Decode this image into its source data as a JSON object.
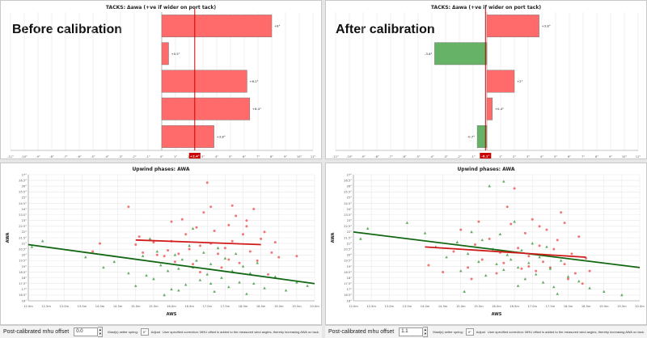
{
  "before": {
    "label": "Before calibration",
    "tacks": {
      "title": "TACKS: Δawa (+ve if wider on port tack)",
      "marker_label": "+2.4°",
      "marker_value": 2.4,
      "xlim": [
        -11,
        11
      ],
      "ticks": [
        "-11°",
        "-10°",
        "-9°",
        "-8°",
        "-7°",
        "-6°",
        "-5°",
        "-4°",
        "-3°",
        "-2°",
        "-1°",
        "0°",
        "1°",
        "2°",
        "3°",
        "4°",
        "5°",
        "6°",
        "7°",
        "8°",
        "9°",
        "10°",
        "11°"
      ],
      "bars": [
        {
          "value": 8.0,
          "label": "+8°"
        },
        {
          "value": 0.5,
          "label": "+0.5°"
        },
        {
          "value": 6.2,
          "label": "+6.2°"
        },
        {
          "value": 6.4,
          "label": "+6.4°"
        },
        {
          "value": 3.8,
          "label": "+3.8°"
        }
      ]
    },
    "upwind": {
      "title": "Upwind phases: AWA",
      "xlabel": "AWS",
      "ylabel": "AWA"
    },
    "offset_label": "Post-calibrated mhu offset",
    "offset_value": "0.0",
    "small_text_1": "Mast(s) setter spring:",
    "small_value": "0°",
    "small_text_2": "Adjust",
    "small_text_3": "User specified correction: MHU offset is added to the measured wind angles, thereby increasing AWA on tack."
  },
  "after": {
    "label": "After calibration",
    "tacks": {
      "title": "TACKS: Δawa (+ve if wider on port tack)",
      "marker_label": "-0.1°",
      "marker_value": -0.1,
      "xlim": [
        -11,
        11
      ],
      "ticks": [
        "-11°",
        "-10°",
        "-9°",
        "-8°",
        "-7°",
        "-6°",
        "-5°",
        "-4°",
        "-3°",
        "-2°",
        "-1°",
        "0°",
        "1°",
        "2°",
        "3°",
        "4°",
        "5°",
        "6°",
        "7°",
        "8°",
        "9°",
        "10°",
        "11°"
      ],
      "bars": [
        {
          "value": 3.8,
          "label": "+3.8°"
        },
        {
          "value": -3.8,
          "label": "-3.8°"
        },
        {
          "value": 2.0,
          "label": "+2°"
        },
        {
          "value": 0.4,
          "label": "+0.4°"
        },
        {
          "value": -0.7,
          "label": "-0.7°"
        }
      ]
    },
    "upwind": {
      "title": "Upwind phases: AWA",
      "xlabel": "AWS",
      "ylabel": "AWA"
    },
    "offset_label": "Post-calibrated mhu offset",
    "offset_value": "1.1",
    "small_text_1": "Mast(s) setter spring:",
    "small_value": "0°",
    "small_text_2": "Adjust",
    "small_text_3": "User specified correction: MHU offset is added to the measured wind angles, thereby increasing AWA on tack."
  },
  "upwind_axes": {
    "xticks": [
      "12.0m",
      "12.5m",
      "13.0m",
      "13.5m",
      "14.0m",
      "14.5m",
      "15.0m",
      "15.5m",
      "16.0m",
      "16.5m",
      "17.0m",
      "17.5m",
      "18.0m",
      "18.5m",
      "19.0m",
      "19.5m",
      "20.0m"
    ],
    "yticks": [
      "16°",
      "16.5°",
      "17°",
      "17.5°",
      "18°",
      "18.5°",
      "19°",
      "19.5°",
      "20°",
      "20.5°",
      "21°",
      "21.5°",
      "22°",
      "22.5°",
      "23°",
      "23.5°",
      "24°",
      "24.5°",
      "25°",
      "25.5°",
      "26°",
      "26.5°",
      "27°"
    ],
    "xlim": [
      12,
      20
    ],
    "ylim": [
      16,
      27
    ]
  },
  "colors": {
    "bar_positive": "#ff6b6b",
    "bar_negative": "#66b266",
    "marker": "#cc0000",
    "red_trend": "#d11a1a",
    "green_trend": "#116611",
    "red_points": "#ee5555",
    "green_points": "#3e9a3e"
  },
  "chart_data": [
    {
      "type": "bar",
      "title": "TACKS: Δawa (+ve if wider on port tack)",
      "orientation": "horizontal",
      "values": [
        8.0,
        0.5,
        6.2,
        6.4,
        3.8
      ],
      "data_labels": [
        "+8°",
        "+0.5°",
        "+6.2°",
        "+6.4°",
        "+3.8°"
      ],
      "xlim": [
        -11,
        11
      ],
      "marker": 2.4
    },
    {
      "type": "bar",
      "title": "TACKS: Δawa (+ve if wider on port tack)",
      "orientation": "horizontal",
      "values": [
        3.8,
        -3.8,
        2.0,
        0.4,
        -0.7
      ],
      "data_labels": [
        "+3.8°",
        "-3.8°",
        "+2°",
        "+0.4°",
        "-0.7°"
      ],
      "xlim": [
        -11,
        11
      ],
      "marker": -0.1
    },
    {
      "type": "scatter",
      "title": "Upwind phases: AWA",
      "xlabel": "AWS",
      "ylabel": "AWA",
      "xlim": [
        12,
        20
      ],
      "ylim": [
        16,
        27
      ],
      "trend_red": [
        [
          15.0,
          21.3
        ],
        [
          18.5,
          20.9
        ]
      ],
      "trend_green": [
        [
          12.0,
          20.9
        ],
        [
          20.0,
          17.5
        ]
      ],
      "red_points": [
        [
          14.8,
          24.2
        ],
        [
          15.0,
          20.9
        ],
        [
          15.2,
          20.2
        ],
        [
          15.1,
          21.6
        ],
        [
          15.5,
          21.1
        ],
        [
          15.8,
          19.9
        ],
        [
          15.9,
          20.4
        ],
        [
          16.0,
          21.2
        ],
        [
          16.2,
          20.1
        ],
        [
          16.4,
          21.8
        ],
        [
          16.5,
          20.5
        ],
        [
          16.6,
          19.2
        ],
        [
          16.7,
          22.4
        ],
        [
          16.8,
          20.8
        ],
        [
          16.9,
          23.7
        ],
        [
          17.0,
          26.3
        ],
        [
          17.1,
          24.2
        ],
        [
          17.1,
          21.0
        ],
        [
          17.3,
          20.1
        ],
        [
          17.4,
          18.9
        ],
        [
          17.5,
          20.6
        ],
        [
          17.6,
          22.6
        ],
        [
          17.7,
          21.2
        ],
        [
          17.8,
          23.4
        ],
        [
          17.9,
          19.3
        ],
        [
          18.0,
          21.8
        ],
        [
          18.1,
          22.5
        ],
        [
          18.2,
          20.3
        ],
        [
          18.3,
          24.0
        ],
        [
          18.4,
          19.5
        ],
        [
          18.5,
          21.4
        ],
        [
          18.6,
          22.0
        ],
        [
          18.8,
          20.2
        ],
        [
          18.9,
          21.1
        ],
        [
          19.0,
          19.8
        ],
        [
          16.0,
          22.9
        ],
        [
          16.3,
          23.1
        ],
        [
          17.2,
          22.1
        ],
        [
          17.7,
          24.3
        ],
        [
          18.1,
          23.0
        ],
        [
          15.6,
          20.0
        ],
        [
          16.1,
          19.4
        ],
        [
          16.8,
          18.5
        ],
        [
          17.6,
          19.6
        ],
        [
          18.7,
          18.3
        ],
        [
          14.0,
          21.0
        ],
        [
          13.8,
          20.3
        ],
        [
          19.5,
          19.9
        ]
      ],
      "green_points": [
        [
          12.1,
          20.7
        ],
        [
          12.4,
          21.2
        ],
        [
          13.6,
          19.8
        ],
        [
          14.1,
          18.9
        ],
        [
          14.4,
          19.4
        ],
        [
          14.8,
          18.4
        ],
        [
          15.0,
          17.3
        ],
        [
          15.2,
          19.9
        ],
        [
          15.3,
          18.2
        ],
        [
          15.5,
          17.9
        ],
        [
          15.6,
          20.3
        ],
        [
          15.7,
          19.1
        ],
        [
          15.9,
          18.6
        ],
        [
          16.0,
          17.0
        ],
        [
          16.1,
          20.0
        ],
        [
          16.2,
          18.8
        ],
        [
          16.3,
          19.6
        ],
        [
          16.4,
          17.4
        ],
        [
          16.5,
          20.8
        ],
        [
          16.6,
          18.9
        ],
        [
          16.7,
          19.5
        ],
        [
          16.8,
          17.8
        ],
        [
          16.9,
          20.2
        ],
        [
          17.0,
          18.3
        ],
        [
          17.1,
          19.2
        ],
        [
          17.2,
          16.8
        ],
        [
          17.3,
          20.6
        ],
        [
          17.4,
          18.0
        ],
        [
          17.5,
          19.7
        ],
        [
          17.6,
          17.2
        ],
        [
          17.7,
          18.6
        ],
        [
          17.8,
          20.1
        ],
        [
          17.9,
          17.6
        ],
        [
          18.0,
          19.0
        ],
        [
          18.1,
          16.6
        ],
        [
          18.2,
          18.4
        ],
        [
          18.4,
          19.3
        ],
        [
          18.6,
          17.1
        ],
        [
          18.9,
          18.1
        ],
        [
          19.2,
          16.9
        ],
        [
          19.5,
          17.6
        ],
        [
          19.8,
          17.3
        ],
        [
          16.6,
          22.3
        ],
        [
          15.4,
          21.4
        ],
        [
          17.1,
          17.5
        ],
        [
          16.2,
          16.9
        ],
        [
          15.8,
          16.5
        ],
        [
          18.3,
          17.5
        ]
      ]
    },
    {
      "type": "scatter",
      "title": "Upwind phases: AWA",
      "xlabel": "AWS",
      "ylabel": "AWA",
      "xlim": [
        12,
        20
      ],
      "ylim": [
        16,
        27
      ],
      "trend_red": [
        [
          14.0,
          20.7
        ],
        [
          18.5,
          19.8
        ]
      ],
      "trend_green": [
        [
          12.0,
          22.0
        ],
        [
          20.0,
          18.9
        ]
      ],
      "red_points": [
        [
          14.1,
          19.1
        ],
        [
          14.5,
          18.5
        ],
        [
          14.8,
          20.3
        ],
        [
          15.0,
          22.2
        ],
        [
          15.2,
          18.9
        ],
        [
          15.4,
          20.9
        ],
        [
          15.6,
          19.6
        ],
        [
          15.8,
          21.4
        ],
        [
          16.0,
          18.4
        ],
        [
          16.1,
          20.2
        ],
        [
          16.2,
          19.3
        ],
        [
          16.4,
          22.7
        ],
        [
          16.5,
          25.8
        ],
        [
          16.6,
          20.6
        ],
        [
          16.7,
          18.8
        ],
        [
          16.8,
          21.9
        ],
        [
          16.9,
          19.9
        ],
        [
          17.0,
          23.1
        ],
        [
          17.1,
          18.6
        ],
        [
          17.2,
          20.8
        ],
        [
          17.3,
          19.4
        ],
        [
          17.4,
          22.2
        ],
        [
          17.5,
          18.9
        ],
        [
          17.6,
          20.5
        ],
        [
          17.7,
          21.3
        ],
        [
          17.8,
          23.7
        ],
        [
          17.9,
          19.2
        ],
        [
          18.0,
          17.9
        ],
        [
          18.1,
          20.1
        ],
        [
          18.2,
          18.4
        ],
        [
          18.3,
          21.6
        ],
        [
          18.4,
          17.5
        ],
        [
          18.5,
          19.7
        ],
        [
          15.5,
          22.9
        ],
        [
          16.3,
          24.2
        ],
        [
          17.2,
          22.5
        ],
        [
          17.9,
          22.8
        ],
        [
          18.6,
          18.6
        ],
        [
          16.9,
          19.0
        ],
        [
          15.3,
          17.9
        ]
      ],
      "green_points": [
        [
          12.2,
          21.4
        ],
        [
          12.4,
          22.3
        ],
        [
          13.5,
          22.8
        ],
        [
          14.0,
          21.9
        ],
        [
          14.3,
          20.7
        ],
        [
          14.6,
          19.8
        ],
        [
          14.9,
          21.1
        ],
        [
          15.0,
          18.6
        ],
        [
          15.2,
          20.1
        ],
        [
          15.3,
          22.0
        ],
        [
          15.5,
          19.4
        ],
        [
          15.6,
          21.3
        ],
        [
          15.7,
          18.2
        ],
        [
          15.9,
          20.5
        ],
        [
          16.0,
          19.2
        ],
        [
          16.1,
          21.8
        ],
        [
          16.2,
          18.7
        ],
        [
          16.3,
          20.0
        ],
        [
          16.4,
          19.6
        ],
        [
          16.5,
          22.9
        ],
        [
          16.6,
          18.9
        ],
        [
          16.7,
          20.4
        ],
        [
          16.8,
          17.9
        ],
        [
          16.9,
          19.3
        ],
        [
          17.0,
          21.0
        ],
        [
          17.1,
          18.3
        ],
        [
          17.2,
          19.8
        ],
        [
          17.3,
          17.6
        ],
        [
          17.4,
          20.7
        ],
        [
          17.5,
          18.8
        ],
        [
          17.6,
          17.2
        ],
        [
          17.8,
          19.5
        ],
        [
          18.0,
          18.1
        ],
        [
          18.3,
          17.7
        ],
        [
          18.6,
          17.1
        ],
        [
          19.0,
          16.8
        ],
        [
          19.5,
          16.5
        ],
        [
          16.2,
          26.4
        ],
        [
          15.8,
          26.0
        ],
        [
          15.1,
          16.8
        ],
        [
          16.6,
          17.3
        ],
        [
          17.7,
          16.6
        ]
      ]
    }
  ]
}
